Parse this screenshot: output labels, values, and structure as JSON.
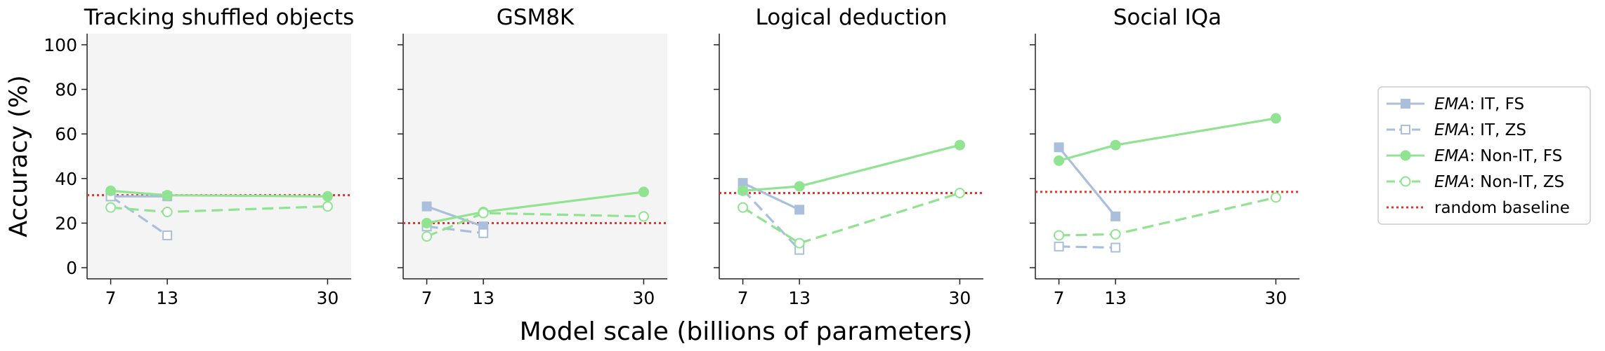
{
  "chart_data": {
    "type": "line",
    "ylabel": "Accuracy (%)",
    "xlabel": "Model scale (billions of parameters)",
    "x_ticks": [
      7,
      13,
      30
    ],
    "y_ticks": [
      0,
      20,
      40,
      60,
      80,
      100
    ],
    "ylim": [
      -5,
      105
    ],
    "xlim": [
      4.5,
      32.5
    ],
    "legend_prefix": "EMA",
    "legend": [
      {
        "key": "it_fs",
        "italic": "EMA",
        "rest": ": IT, FS",
        "color": "#aabfdb",
        "dashed": false,
        "marker": "square",
        "filled": true
      },
      {
        "key": "it_zs",
        "italic": "EMA",
        "rest": ": IT, ZS",
        "color": "#aabfdb",
        "dashed": true,
        "marker": "square",
        "filled": false
      },
      {
        "key": "nonit_fs",
        "italic": "EMA",
        "rest": ": Non-IT, FS",
        "color": "#90e390",
        "dashed": false,
        "marker": "circle",
        "filled": true
      },
      {
        "key": "nonit_zs",
        "italic": "EMA",
        "rest": ": Non-IT, ZS",
        "color": "#90e390",
        "dashed": true,
        "marker": "circle",
        "filled": false
      },
      {
        "key": "baseline",
        "italic": "",
        "rest": "random baseline",
        "color": "#e8322e",
        "dotted": true
      }
    ],
    "panels": [
      {
        "title": "Tracking shuffled objects",
        "shaded": true,
        "baseline": 32.5,
        "series": {
          "it_fs": {
            "x": [
              7,
              13
            ],
            "y": [
              32,
              32
            ]
          },
          "it_zs": {
            "x": [
              7,
              13
            ],
            "y": [
              32,
              14.5
            ]
          },
          "nonit_fs": {
            "x": [
              7,
              13,
              30
            ],
            "y": [
              34.5,
              32.5,
              32
            ]
          },
          "nonit_zs": {
            "x": [
              7,
              13,
              30
            ],
            "y": [
              27,
              25,
              27.5
            ]
          }
        }
      },
      {
        "title": "GSM8K",
        "shaded": true,
        "baseline": 20,
        "series": {
          "it_fs": {
            "x": [
              7,
              13
            ],
            "y": [
              27.5,
              18.5
            ]
          },
          "it_zs": {
            "x": [
              7,
              13
            ],
            "y": [
              18.5,
              15.5
            ]
          },
          "nonit_fs": {
            "x": [
              7,
              13,
              30
            ],
            "y": [
              20,
              25,
              34
            ]
          },
          "nonit_zs": {
            "x": [
              7,
              13,
              30
            ],
            "y": [
              14,
              24.5,
              23
            ]
          }
        }
      },
      {
        "title": "Logical deduction",
        "shaded": false,
        "baseline": 33.5,
        "series": {
          "it_fs": {
            "x": [
              7,
              13
            ],
            "y": [
              38,
              26
            ]
          },
          "it_zs": {
            "x": [
              7,
              13
            ],
            "y": [
              35,
              8
            ]
          },
          "nonit_fs": {
            "x": [
              7,
              13,
              30
            ],
            "y": [
              34.5,
              36.5,
              55
            ]
          },
          "nonit_zs": {
            "x": [
              7,
              13,
              30
            ],
            "y": [
              27,
              11,
              33.5
            ]
          }
        }
      },
      {
        "title": "Social IQa",
        "shaded": false,
        "baseline": 34,
        "series": {
          "it_fs": {
            "x": [
              7,
              13
            ],
            "y": [
              54,
              23
            ]
          },
          "it_zs": {
            "x": [
              7,
              13
            ],
            "y": [
              9.5,
              9
            ]
          },
          "nonit_fs": {
            "x": [
              7,
              13,
              30
            ],
            "y": [
              48,
              55,
              67
            ]
          },
          "nonit_zs": {
            "x": [
              7,
              13,
              30
            ],
            "y": [
              14.5,
              15,
              31.5
            ]
          }
        }
      }
    ]
  }
}
